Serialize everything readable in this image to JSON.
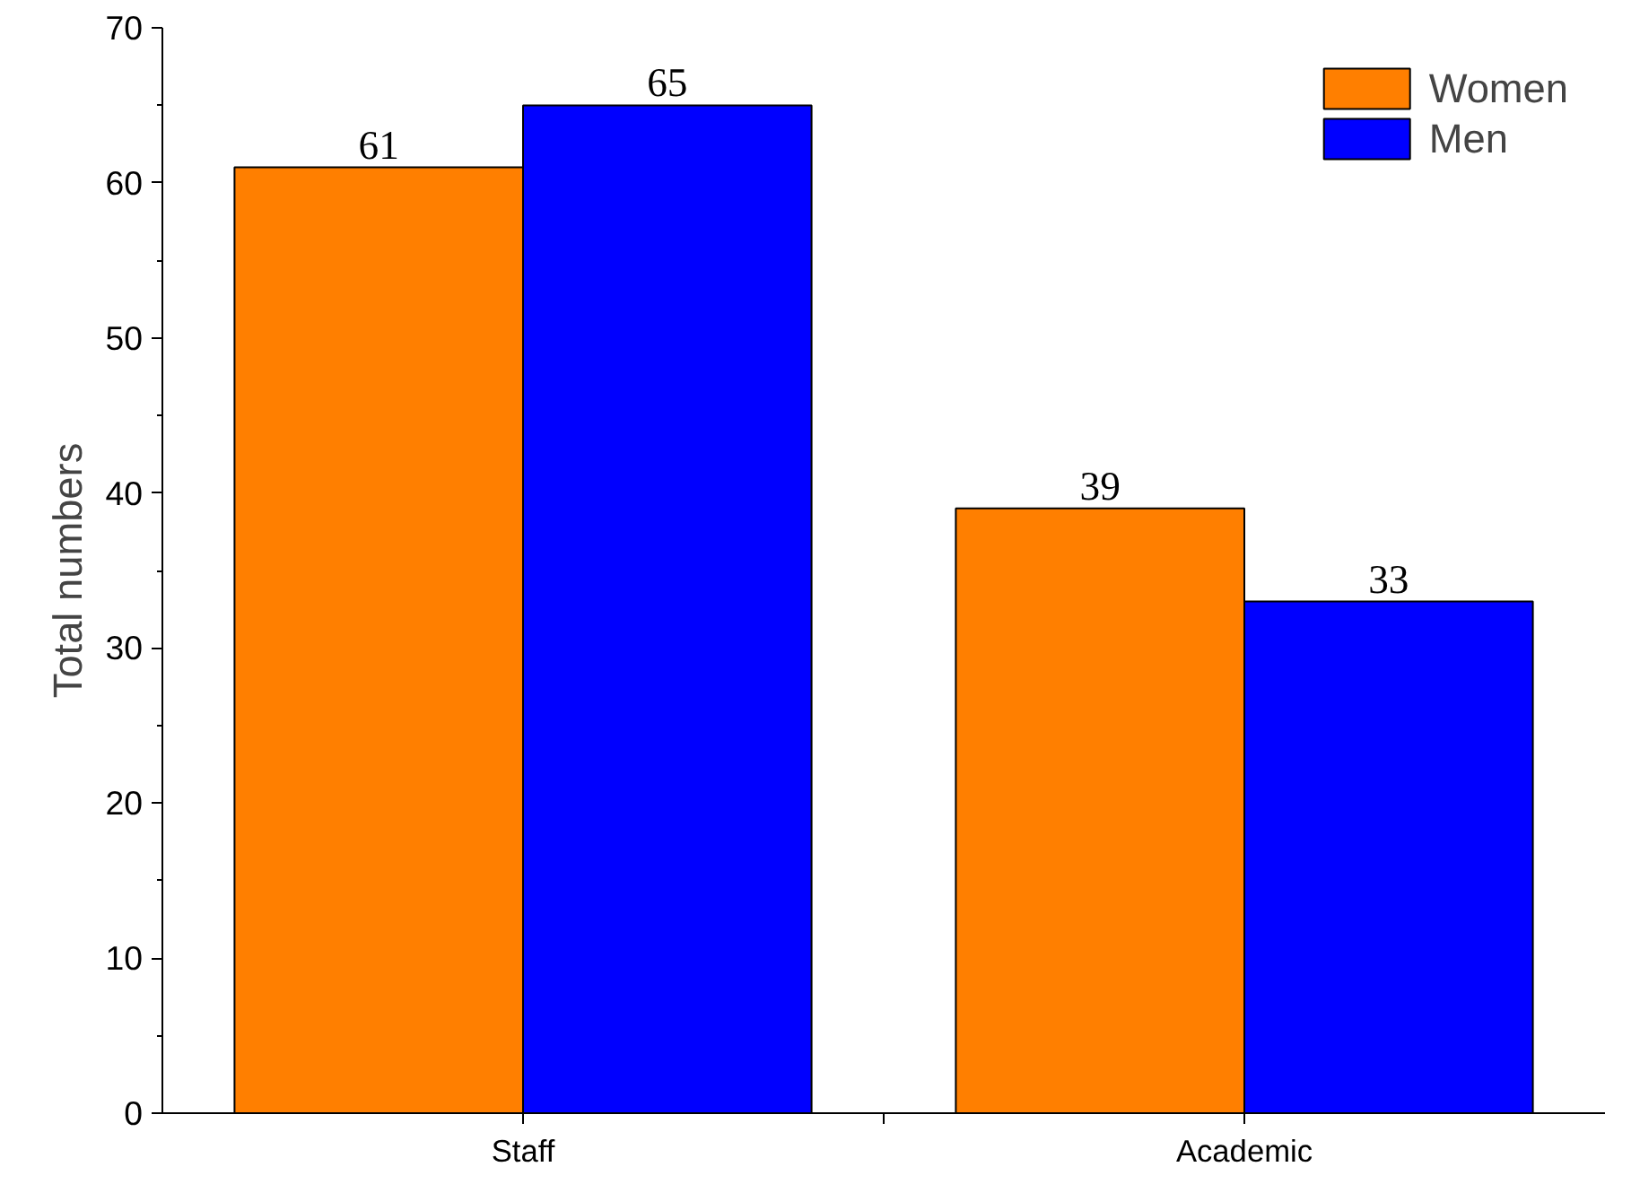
{
  "chart_data": {
    "type": "bar",
    "ylabel": "Total numbers",
    "categories": [
      "Staff",
      "Academic"
    ],
    "series": [
      {
        "name": "Women",
        "color": "#ff7f00",
        "values": [
          61,
          39
        ]
      },
      {
        "name": "Men",
        "color": "#0000ff",
        "values": [
          65,
          33
        ]
      }
    ],
    "ylim": [
      0,
      70
    ],
    "yticks": [
      0,
      10,
      20,
      30,
      40,
      50,
      60,
      70
    ],
    "grid": false,
    "legend": "top right",
    "data_labels": true
  }
}
